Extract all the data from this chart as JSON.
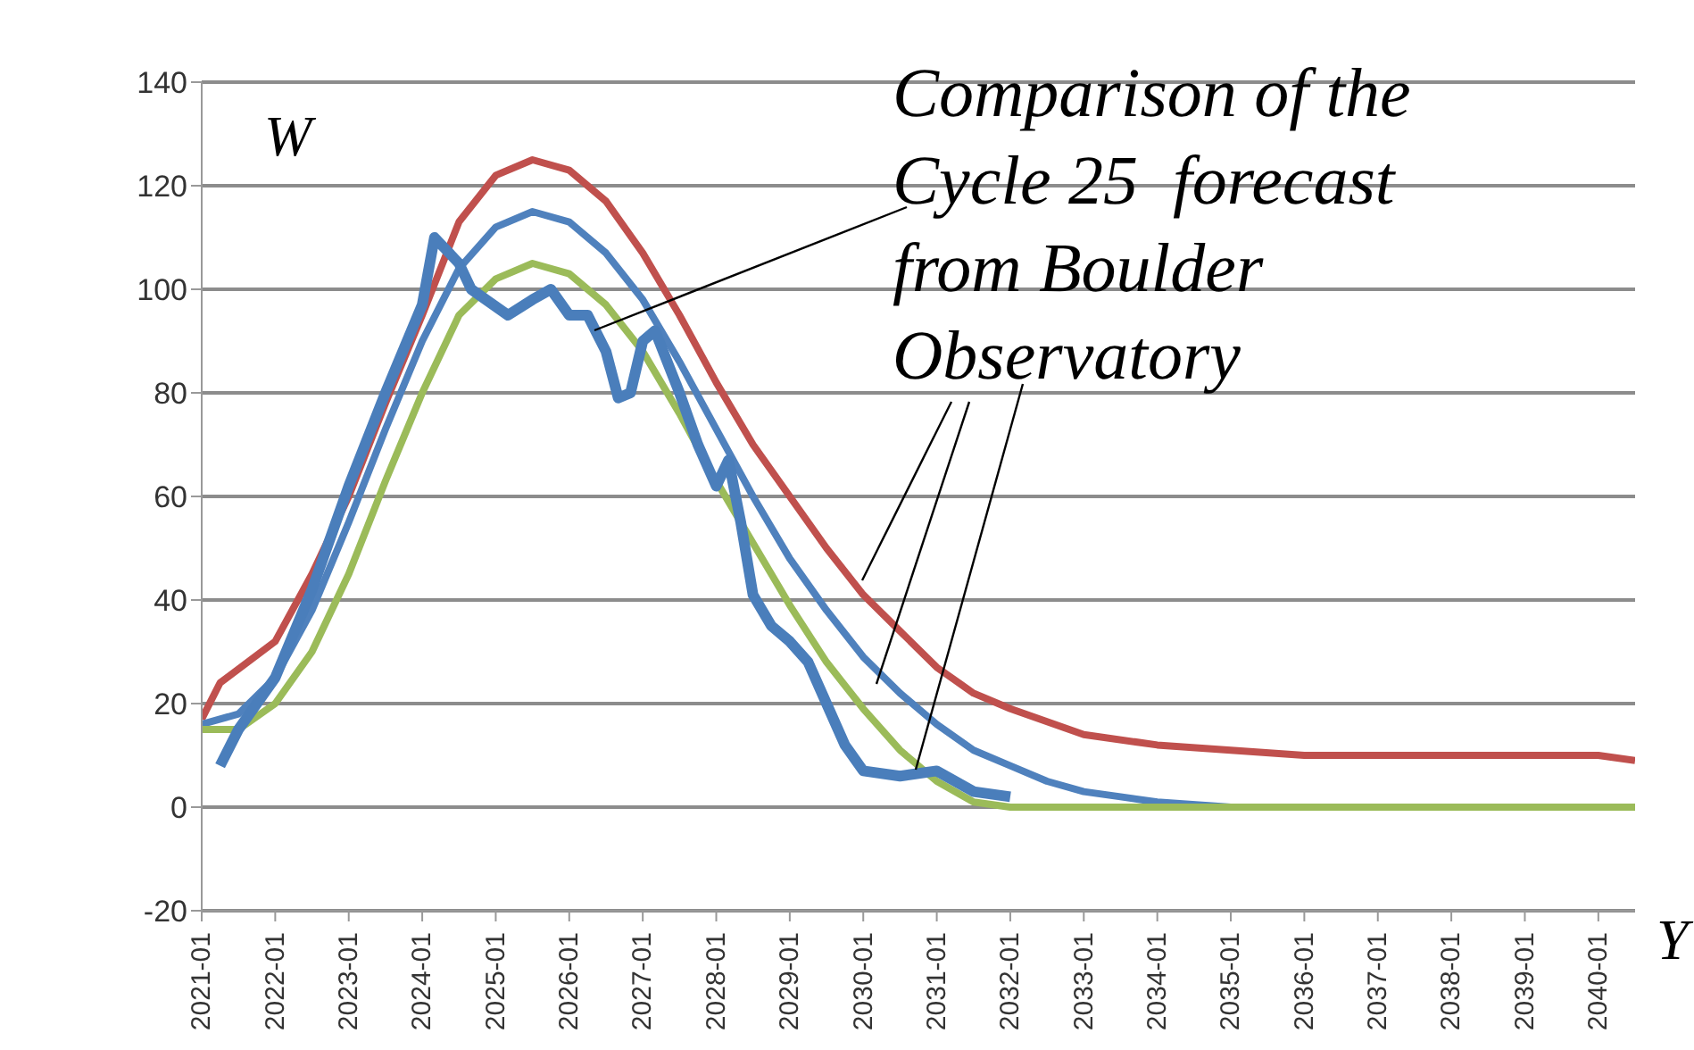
{
  "chart_data": {
    "type": "line",
    "title": "Comparison of the Cycle 25  forecast from Boulder Observatory",
    "xlabel": "Y",
    "ylabel": "W",
    "xlim": [
      "2021-01",
      "2040-07"
    ],
    "xticks": [
      "2021-01",
      "2022-01",
      "2023-01",
      "2024-01",
      "2025-01",
      "2026-01",
      "2027-01",
      "2028-01",
      "2029-01",
      "2030-01",
      "2031-01",
      "2032-01",
      "2033-01",
      "2034-01",
      "2035-01",
      "2036-01",
      "2037-01",
      "2038-01",
      "2039-01",
      "2040-01"
    ],
    "ylim": [
      -20,
      140
    ],
    "yticks": [
      -20,
      0,
      20,
      40,
      60,
      80,
      100,
      120,
      140
    ],
    "grid": "y",
    "legend": false,
    "marker": "none",
    "line_style": "solid",
    "series": [
      {
        "color": "#c0504d",
        "x": [
          "2021-01",
          "2021-04",
          "2022-01",
          "2022-07",
          "2023-01",
          "2023-07",
          "2024-01",
          "2024-07",
          "2025-01",
          "2025-07",
          "2026-01",
          "2026-07",
          "2027-01",
          "2027-07",
          "2028-01",
          "2028-07",
          "2029-01",
          "2029-07",
          "2030-01",
          "2030-07",
          "2031-01",
          "2031-07",
          "2032-01",
          "2033-01",
          "2034-01",
          "2035-01",
          "2036-01",
          "2040-01",
          "2040-07"
        ],
        "values": [
          17,
          24,
          32,
          45,
          60,
          78,
          95,
          113,
          122,
          125,
          123,
          117,
          107,
          95,
          82,
          70,
          60,
          50,
          41,
          34,
          27,
          22,
          19,
          14,
          12,
          11,
          10,
          10,
          9
        ]
      },
      {
        "color": "#4f81bd",
        "x": [
          "2021-01",
          "2021-07",
          "2022-01",
          "2022-07",
          "2023-01",
          "2023-07",
          "2024-01",
          "2024-07",
          "2025-01",
          "2025-07",
          "2026-01",
          "2026-07",
          "2027-01",
          "2027-07",
          "2028-01",
          "2028-07",
          "2029-01",
          "2029-07",
          "2030-01",
          "2030-07",
          "2031-01",
          "2031-07",
          "2032-01",
          "2032-07",
          "2033-01",
          "2033-07",
          "2034-01",
          "2035-01",
          "2040-07"
        ],
        "values": [
          16,
          18,
          25,
          38,
          55,
          73,
          90,
          104,
          112,
          115,
          113,
          107,
          98,
          86,
          73,
          60,
          48,
          38,
          29,
          22,
          16,
          11,
          8,
          5,
          3,
          2,
          1,
          0,
          0
        ]
      },
      {
        "color": "#9bbb59",
        "x": [
          "2021-01",
          "2021-07",
          "2022-01",
          "2022-07",
          "2023-01",
          "2023-07",
          "2024-01",
          "2024-07",
          "2025-01",
          "2025-07",
          "2026-01",
          "2026-07",
          "2027-01",
          "2027-07",
          "2028-01",
          "2028-07",
          "2029-01",
          "2029-07",
          "2030-01",
          "2030-07",
          "2031-01",
          "2031-07",
          "2032-01",
          "2040-07"
        ],
        "values": [
          15,
          15,
          20,
          30,
          45,
          63,
          80,
          95,
          102,
          105,
          103,
          97,
          88,
          76,
          63,
          51,
          39,
          28,
          19,
          11,
          5,
          1,
          0,
          0
        ]
      },
      {
        "color": "#4a7ebb",
        "x": [
          "2021-04",
          "2021-07",
          "2022-01",
          "2022-07",
          "2023-01",
          "2023-07",
          "2024-01",
          "2024-03",
          "2024-07",
          "2024-09",
          "2025-03",
          "2025-07",
          "2025-10",
          "2026-01",
          "2026-04",
          "2026-07",
          "2026-09",
          "2026-11",
          "2027-01",
          "2027-03",
          "2027-07",
          "2027-10",
          "2028-01",
          "2028-03",
          "2028-05",
          "2028-07",
          "2028-10",
          "2029-01",
          "2029-04",
          "2029-07",
          "2029-10",
          "2030-01",
          "2030-07",
          "2031-01",
          "2031-07",
          "2032-01"
        ],
        "values": [
          8,
          15,
          25,
          42,
          62,
          80,
          97,
          110,
          105,
          100,
          95,
          98,
          100,
          95,
          95,
          88,
          79,
          80,
          90,
          92,
          80,
          70,
          62,
          67,
          55,
          41,
          35,
          32,
          28,
          20,
          12,
          7,
          6,
          7,
          3,
          2
        ]
      }
    ]
  }
}
